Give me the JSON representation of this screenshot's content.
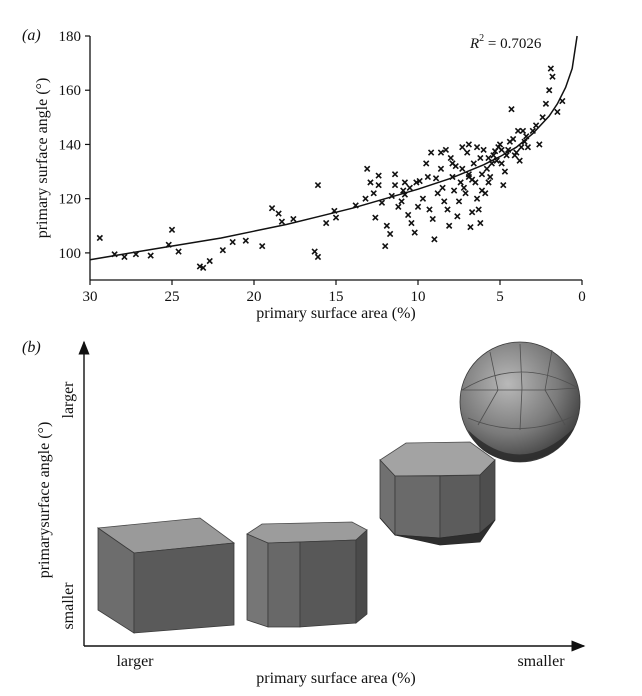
{
  "chart_data": [
    {
      "panel_label": "(a)",
      "type": "scatter",
      "xlabel": "primary surface area (%)",
      "ylabel": "primary surface angle (°)",
      "xlim": [
        30,
        0
      ],
      "ylim": [
        90,
        180
      ],
      "x_reversed": true,
      "xticks": [
        "30",
        "25",
        "20",
        "15",
        "10",
        "5",
        "0"
      ],
      "xtick_values": [
        30,
        25,
        20,
        15,
        10,
        5,
        0
      ],
      "yticks": [
        "100",
        "120",
        "140",
        "160",
        "180"
      ],
      "ytick_values": [
        100,
        120,
        140,
        160,
        180
      ],
      "annotation": {
        "prefix": "R",
        "sup": "2",
        "suffix": " = 0.7026"
      },
      "marker": "x",
      "series": [
        {
          "points": [
            [
              29.4,
              105.5
            ],
            [
              28.5,
              99.5
            ],
            [
              27.9,
              98.5
            ],
            [
              27.2,
              99.5
            ],
            [
              26.3,
              99
            ],
            [
              25.2,
              103
            ],
            [
              25.0,
              108.5
            ],
            [
              24.6,
              100.5
            ],
            [
              23.3,
              95
            ],
            [
              23.1,
              94.5
            ],
            [
              22.7,
              97
            ],
            [
              21.9,
              101
            ],
            [
              21.3,
              104
            ],
            [
              20.5,
              104.5
            ],
            [
              19.5,
              102.5
            ],
            [
              18.9,
              116.5
            ],
            [
              18.5,
              114.5
            ],
            [
              18.3,
              111.5
            ],
            [
              17.6,
              112.5
            ],
            [
              16.3,
              100.5
            ],
            [
              16.1,
              125
            ],
            [
              16.1,
              98.5
            ],
            [
              15.6,
              111
            ],
            [
              15.1,
              115.5
            ],
            [
              15.0,
              113
            ],
            [
              13.8,
              117.5
            ],
            [
              13.2,
              120
            ],
            [
              13.1,
              131
            ],
            [
              12.9,
              126
            ],
            [
              12.7,
              122
            ],
            [
              12.6,
              113
            ],
            [
              12.4,
              128.5
            ],
            [
              12.2,
              118.5
            ],
            [
              12.0,
              102.5
            ],
            [
              11.9,
              110
            ],
            [
              11.7,
              107
            ],
            [
              11.6,
              121
            ],
            [
              11.4,
              125
            ],
            [
              11.2,
              117
            ],
            [
              11.0,
              119
            ],
            [
              10.8,
              121.5
            ],
            [
              10.8,
              126
            ],
            [
              10.6,
              114
            ],
            [
              10.5,
              124
            ],
            [
              10.4,
              111
            ],
            [
              10.2,
              107.5
            ],
            [
              10.0,
              117
            ],
            [
              9.9,
              126.5
            ],
            [
              9.7,
              120
            ],
            [
              9.5,
              133
            ],
            [
              9.4,
              128
            ],
            [
              9.2,
              137
            ],
            [
              9.1,
              112.5
            ],
            [
              9.0,
              105
            ],
            [
              8.9,
              127.5
            ],
            [
              8.8,
              122
            ],
            [
              8.6,
              131
            ],
            [
              8.5,
              124
            ],
            [
              8.4,
              119
            ],
            [
              8.3,
              138
            ],
            [
              8.2,
              116
            ],
            [
              8.1,
              110
            ],
            [
              8.0,
              135
            ],
            [
              7.9,
              128
            ],
            [
              7.8,
              123
            ],
            [
              7.7,
              132
            ],
            [
              7.6,
              113.5
            ],
            [
              7.5,
              119
            ],
            [
              7.4,
              126
            ],
            [
              7.3,
              131
            ],
            [
              7.2,
              124
            ],
            [
              7.1,
              122
            ],
            [
              7.0,
              137
            ],
            [
              6.9,
              140
            ],
            [
              6.9,
              129
            ],
            [
              6.8,
              109.5
            ],
            [
              6.7,
              127
            ],
            [
              6.6,
              133
            ],
            [
              6.5,
              126
            ],
            [
              6.4,
              120
            ],
            [
              6.3,
              116
            ],
            [
              6.2,
              111
            ],
            [
              6.2,
              135
            ],
            [
              6.1,
              129
            ],
            [
              6.0,
              138
            ],
            [
              5.9,
              122
            ],
            [
              5.8,
              131
            ],
            [
              5.7,
              126
            ],
            [
              5.6,
              128
            ],
            [
              5.5,
              133
            ],
            [
              5.4,
              136
            ],
            [
              5.3,
              137.5
            ],
            [
              5.2,
              134
            ],
            [
              5.1,
              139
            ],
            [
              5.0,
              140
            ],
            [
              4.9,
              133
            ],
            [
              4.8,
              125
            ],
            [
              4.7,
              130
            ],
            [
              4.6,
              136
            ],
            [
              4.5,
              138
            ],
            [
              4.4,
              141
            ],
            [
              4.3,
              153
            ],
            [
              4.2,
              142
            ],
            [
              4.1,
              136
            ],
            [
              4.0,
              137
            ],
            [
              3.8,
              134
            ],
            [
              3.7,
              139
            ],
            [
              3.6,
              145
            ],
            [
              3.5,
              141
            ],
            [
              3.4,
              143
            ],
            [
              3.3,
              139
            ],
            [
              3.0,
              145
            ],
            [
              2.8,
              147
            ],
            [
              2.6,
              140
            ],
            [
              2.4,
              150
            ],
            [
              2.2,
              155
            ],
            [
              2.0,
              160
            ],
            [
              1.9,
              168
            ],
            [
              1.8,
              165
            ],
            [
              1.5,
              152
            ],
            [
              1.2,
              156
            ],
            [
              6.9,
              128
            ],
            [
              7.3,
              139
            ],
            [
              7.9,
              133
            ],
            [
              8.6,
              137
            ],
            [
              9.3,
              116
            ],
            [
              10.1,
              126
            ],
            [
              10.9,
              123
            ],
            [
              11.4,
              129
            ],
            [
              12.4,
              125
            ],
            [
              6.4,
              139
            ],
            [
              5.7,
              135
            ],
            [
              4.9,
              138
            ],
            [
              3.9,
              145
            ],
            [
              6.7,
              115
            ],
            [
              6.1,
              123
            ]
          ]
        },
        {
          "name": "fit",
          "x": [
            30,
            28,
            26,
            24,
            22,
            20,
            18,
            16,
            14,
            12,
            10,
            8,
            6,
            5,
            4,
            3,
            2,
            1.5,
            1,
            0.6,
            0.3
          ],
          "y": [
            97.5,
            99.5,
            101.5,
            103.5,
            105.5,
            108,
            110.5,
            113.5,
            116.5,
            120,
            123.5,
            127.5,
            132.5,
            135.5,
            139,
            144,
            150.5,
            155,
            161,
            168,
            180
          ]
        }
      ]
    },
    {
      "panel_label": "(b)",
      "type": "diagram",
      "xlabel": "primary surface area (%)",
      "ylabel": "primarysurface angle (°)",
      "x_low_label": "larger",
      "x_high_label": "smaller",
      "y_low_label": "smaller",
      "y_high_label": "larger",
      "shapes": [
        "cube",
        "truncated-cube-octagon",
        "rounded-polyhedron",
        "near-sphere-polyhedron"
      ]
    }
  ]
}
